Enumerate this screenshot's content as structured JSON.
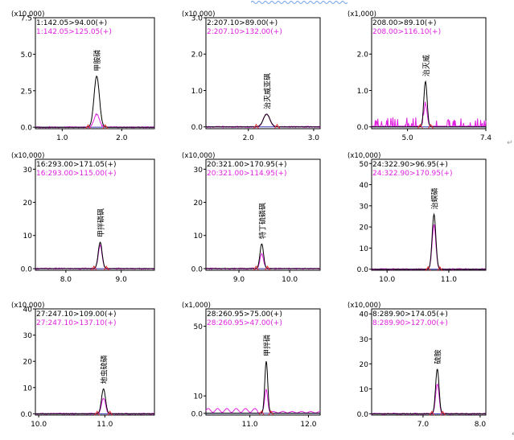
{
  "chart_data": [
    {
      "type": "line",
      "multiplier": "(x10,000)",
      "mrm": [
        "1:142.05>94.00(+)",
        "1:142.05>125.05(+)"
      ],
      "annotation": "甲胺磷",
      "xlim": [
        0.55,
        2.55
      ],
      "xticks": [
        "1.0",
        "2.0"
      ],
      "ylim": [
        -0.1,
        7.5
      ],
      "yticks": [
        "0.0",
        "2.5",
        "5.0",
        "7.5"
      ],
      "peak_x": 1.58,
      "peak_height": [
        3.5,
        0.9
      ],
      "peak_width": 0.045
    },
    {
      "type": "line",
      "multiplier": "(x10,000)",
      "mrm": [
        "2:207.10>89.00(+)",
        "2:207.10>132.00(+)"
      ],
      "annotation": "治灭威亚砜",
      "xlim": [
        1.35,
        3.1
      ],
      "xticks": [
        "2.0",
        "3.0"
      ],
      "ylim": [
        -0.05,
        3.0
      ],
      "yticks": [
        "0.0",
        "1.0",
        "2.0",
        "3.0"
      ],
      "peak_x": 2.28,
      "peak_height": [
        0.35,
        0.35
      ],
      "peak_width": 0.05
    },
    {
      "type": "line",
      "multiplier": "(x1,000)",
      "mrm": [
        "208.00>89.10(+)",
        "208.00>116.10(+)"
      ],
      "annotation": "治灭威",
      "xlim": [
        3.9,
        7.4
      ],
      "xticks": [
        "5.0",
        "7.4"
      ],
      "ylim": [
        -0.05,
        3.0
      ],
      "yticks": [
        "0.0",
        "1.0",
        "2.0"
      ],
      "peak_x": 5.55,
      "peak_height": [
        1.25,
        0.6
      ],
      "peak_width": 0.05
    },
    {
      "type": "line",
      "multiplier": "(x10,000)",
      "mrm": [
        "16:293.00>171.05(+)",
        "16:293.00>115.00(+)"
      ],
      "annotation": "甲拌磷砜",
      "xlim": [
        7.45,
        9.6
      ],
      "xticks": [
        "8.0",
        "9.0"
      ],
      "ylim": [
        -0.5,
        33
      ],
      "yticks": [
        "0.0",
        "10",
        "20",
        "30"
      ],
      "peak_x": 8.62,
      "peak_height": [
        8.0,
        7.0
      ],
      "peak_width": 0.035
    },
    {
      "type": "line",
      "multiplier": "(x10,000)",
      "mrm": [
        "20:321.00>170.95(+)",
        "20:321.00>114.95(+)"
      ],
      "annotation": "特丁硫磷砜",
      "xlim": [
        8.35,
        10.6
      ],
      "xticks": [
        "9.0",
        "10.0"
      ],
      "ylim": [
        -0.5,
        33
      ],
      "yticks": [
        "0.0",
        "10",
        "20",
        "30"
      ],
      "peak_x": 9.45,
      "peak_height": [
        7.5,
        4.5
      ],
      "peak_width": 0.035
    },
    {
      "type": "line",
      "multiplier": "(x10,000)",
      "mrm": [
        "24:322.90>96.95(+)",
        "24:322.90>170.95(+)"
      ],
      "annotation": "治螟磷",
      "xlim": [
        9.75,
        11.6
      ],
      "xticks": [
        "10.0",
        "11.0"
      ],
      "ylim": [
        -0.5,
        52
      ],
      "yticks": [
        "0.0",
        "10",
        "20",
        "30",
        "40",
        "50"
      ],
      "peak_x": 10.76,
      "peak_height": [
        26,
        21
      ],
      "peak_width": 0.03
    },
    {
      "type": "line",
      "multiplier": "(x10,000)",
      "mrm": [
        "27:247.10>109.00(+)",
        "27:247.10>137.10(+)"
      ],
      "annotation": "地虫硫磷",
      "xlim": [
        9.95,
        11.75
      ],
      "xticks": [
        "10.0",
        "11.0"
      ],
      "ylim": [
        -0.5,
        40
      ],
      "yticks": [
        "0.0",
        "10",
        "20",
        "30",
        "40"
      ],
      "peak_x": 10.98,
      "peak_height": [
        9.5,
        6.0
      ],
      "peak_width": 0.03
    },
    {
      "type": "line",
      "multiplier": "(x1,000)",
      "mrm": [
        "28:260.95>75.00(+)",
        "28:260.95>47.00(+)"
      ],
      "annotation": "甲拌磷",
      "xlim": [
        10.25,
        12.2
      ],
      "xticks": [
        "11.0",
        "12.0"
      ],
      "ylim": [
        -1,
        60
      ],
      "yticks": [
        "0.0",
        "10",
        "50"
      ],
      "peak_x": 11.28,
      "peak_height": [
        30,
        13
      ],
      "peak_width": 0.025
    },
    {
      "type": "line",
      "multiplier": "(x10,000)",
      "mrm": [
        "8:289.90>174.05(+)",
        "8:289.90>127.00(+)"
      ],
      "annotation": "硫胺",
      "xlim": [
        6.1,
        8.1
      ],
      "xticks": [
        "7.0",
        "8.0"
      ],
      "ylim": [
        -0.5,
        42
      ],
      "yticks": [
        "0.0",
        "10",
        "20",
        "30",
        "40"
      ],
      "peak_x": 7.25,
      "peak_height": [
        18,
        12
      ],
      "peak_width": 0.03
    }
  ],
  "colors": {
    "transition1": "#000000",
    "transition2": "#e020e0",
    "baseline": "#3030b0",
    "marker": "#e03030",
    "axis": "#000000"
  }
}
